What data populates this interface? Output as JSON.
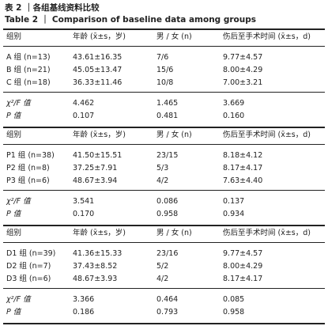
{
  "title": {
    "cn": "表 2 ｜各组基线资料比较",
    "en": "Table 2 ｜ Comparison of baseline data among groups"
  },
  "sections": [
    {
      "header": [
        "组别",
        "年龄 (x̄±s，岁)",
        "男 / 女 (n)",
        "伤后至手术时间 (x̄±s，d)"
      ],
      "rows": [
        [
          "A 组 (n=13)",
          "43.61±16.35",
          "7/6",
          "9.77±4.57"
        ],
        [
          "B 组 (n=21)",
          "45.05±13.47",
          "15/6",
          "8.00±4.29"
        ],
        [
          "C 组 (n=18)",
          "36.33±11.46",
          "10/8",
          "7.00±3.21"
        ]
      ],
      "stats": [
        [
          "χ²/F 值",
          "4.462",
          "1.465",
          "3.669"
        ],
        [
          "P 值",
          "0.107",
          "0.481",
          "0.160"
        ]
      ]
    },
    {
      "header": [
        "组别",
        "年龄 (x̄±s，岁)",
        "男 / 女 (n)",
        "伤后至手术时间 (x̄±s，d)"
      ],
      "rows": [
        [
          "P1 组 (n=38)",
          "41.50±15.51",
          "23/15",
          "8.18±4.12"
        ],
        [
          "P2 组 (n=8)",
          "37.25±7.91",
          "5/3",
          "8.17±4.17"
        ],
        [
          "P3 组 (n=6)",
          "48.67±3.94",
          "4/2",
          "7.63±4.40"
        ]
      ],
      "stats": [
        [
          "χ²/F 值",
          "3.541",
          "0.086",
          "0.137"
        ],
        [
          "P 值",
          "0.170",
          "0.958",
          "0.934"
        ]
      ]
    },
    {
      "header": [
        "组别",
        "年龄 (x̄±s，岁)",
        "男 / 女 (n)",
        "伤后至手术时间 (x̄±s，d)"
      ],
      "rows": [
        [
          "D1 组 (n=39)",
          "41.36±15.33",
          "23/16",
          "9.77±4.57"
        ],
        [
          "D2 组 (n=7)",
          "37.43±8.52",
          "5/2",
          "8.00±4.29"
        ],
        [
          "D3 组 (n=6)",
          "48.67±3.93",
          "4/2",
          "8.17±4.17"
        ]
      ],
      "stats": [
        [
          "χ²/F 值",
          "3.366",
          "0.464",
          "0.085"
        ],
        [
          "P 值",
          "0.186",
          "0.793",
          "0.958"
        ]
      ]
    }
  ]
}
